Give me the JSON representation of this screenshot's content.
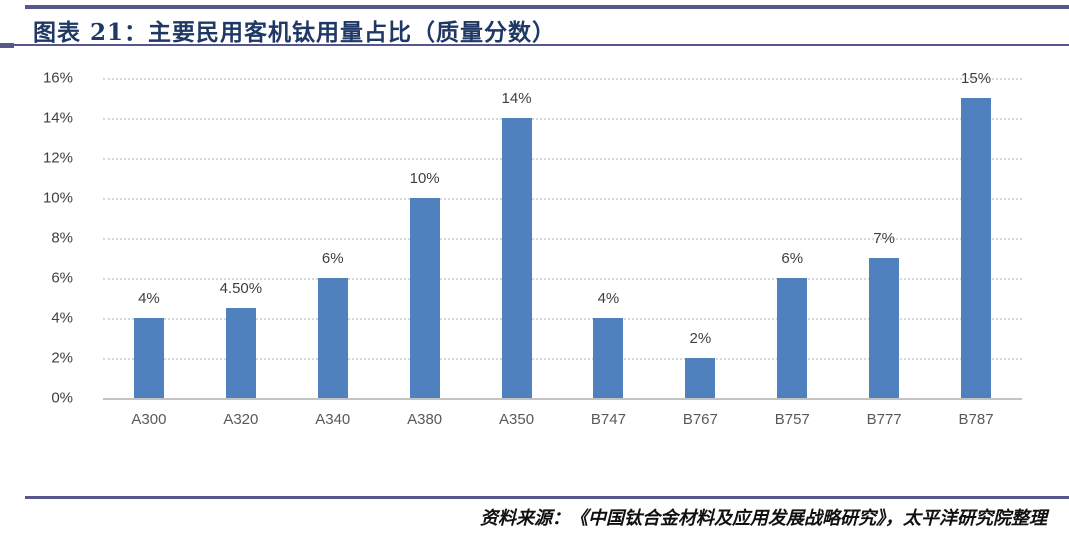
{
  "header": {
    "title": "图表 21：主要民用客机钛用量占比（质量分数）"
  },
  "footer": {
    "source": "资料来源：《中国钛合金材料及应用发展战略研究》，太平洋研究院整理"
  },
  "colors": {
    "bar": "#4E81BD",
    "title_text": "#1F3864",
    "rule": "#57578C",
    "gridline": "#D9D9D9",
    "axis_line": "#C3C3C3",
    "y_tick_label": "#404040",
    "x_tick_label": "#595959",
    "data_label": "#3F3F3F"
  },
  "chart_data": {
    "type": "bar",
    "title": "图表 21：主要民用客机钛用量占比（质量分数）",
    "categories": [
      "A300",
      "A320",
      "A340",
      "A380",
      "A350",
      "B747",
      "B767",
      "B757",
      "B777",
      "B787"
    ],
    "values": [
      4,
      4.5,
      6,
      10,
      14,
      4,
      2,
      6,
      7,
      15
    ],
    "data_labels": [
      "4%",
      "4.50%",
      "6%",
      "10%",
      "14%",
      "4%",
      "2%",
      "6%",
      "7%",
      "15%"
    ],
    "xlabel": "",
    "ylabel": "",
    "ylim": [
      0,
      16
    ],
    "y_ticks": [
      0,
      2,
      4,
      6,
      8,
      10,
      12,
      14,
      16
    ],
    "y_tick_labels": [
      "0%",
      "2%",
      "4%",
      "6%",
      "8%",
      "10%",
      "12%",
      "14%",
      "16%"
    ],
    "grid": "horizontal-dotted",
    "legend": "none"
  }
}
